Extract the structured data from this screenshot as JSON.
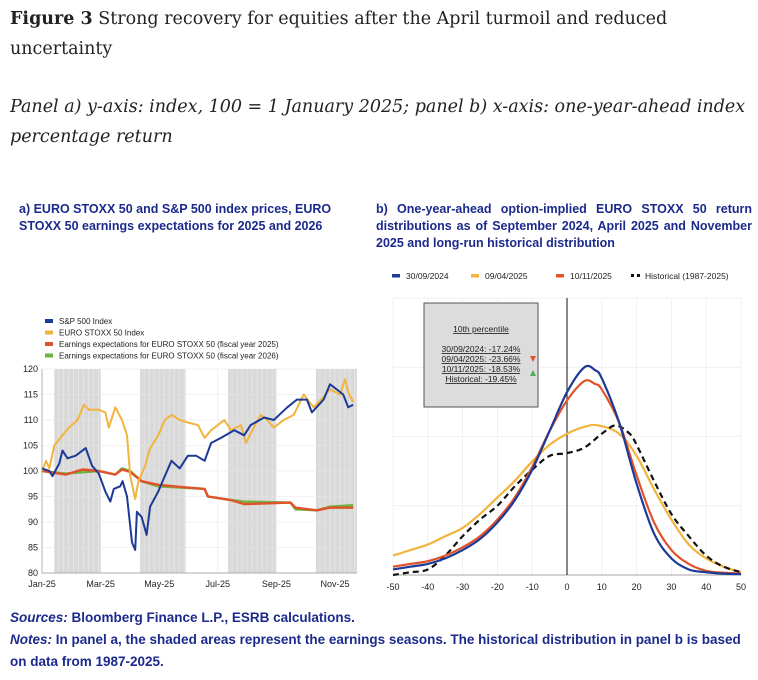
{
  "figure": {
    "label": "Figure 3",
    "title": "Strong recovery for equities after the April turmoil and reduced uncertainty",
    "subtitle": "Panel a) y-axis: index, 100 = 1 January 2025; panel b) x-axis: one-year-ahead index percentage return"
  },
  "footer": {
    "sources_label": "Sources:",
    "sources_text": "Bloomberg Finance L.P., ESRB calculations.",
    "notes_label": "Notes:",
    "notes_text": "In panel a, the shaded areas represent the earnings seasons. The historical distribution in panel b is based on data from 1987-2025."
  },
  "chart_data": [
    {
      "type": "line",
      "title": "a) EURO STOXX 50 and S&P 500 index prices, EURO STOXX 50 earnings expectations for 2025 and 2026",
      "xlabel": "",
      "ylabel": "",
      "x_unit": "months since 1 Jan 2025",
      "xlim": [
        0,
        10.75
      ],
      "ylim": [
        80,
        120
      ],
      "yticks": [
        80,
        85,
        90,
        95,
        100,
        105,
        110,
        115,
        120
      ],
      "xticks": [
        {
          "x": 0,
          "label": "Jan-25"
        },
        {
          "x": 2,
          "label": "Mar-25"
        },
        {
          "x": 4,
          "label": "May-25"
        },
        {
          "x": 6,
          "label": "Jul-25"
        },
        {
          "x": 8,
          "label": "Sep-25"
        },
        {
          "x": 10,
          "label": "Nov-25"
        }
      ],
      "shaded_periods": [
        [
          0.42,
          2.0
        ],
        [
          3.35,
          4.9
        ],
        [
          6.35,
          7.98
        ],
        [
          9.35,
          10.75
        ]
      ],
      "legend_position": "top-left",
      "series": [
        {
          "name": "S&P 500 Index",
          "color": "#1c3a96",
          "points": [
            [
              0,
              100.5
            ],
            [
              0.25,
              100
            ],
            [
              0.36,
              99
            ],
            [
              0.59,
              101.5
            ],
            [
              0.7,
              104
            ],
            [
              0.87,
              102.5
            ],
            [
              1.15,
              103
            ],
            [
              1.49,
              104.5
            ],
            [
              1.71,
              101
            ],
            [
              1.94,
              99.5
            ],
            [
              2.16,
              96
            ],
            [
              2.33,
              94
            ],
            [
              2.45,
              96.5
            ],
            [
              2.67,
              97
            ],
            [
              2.75,
              98
            ],
            [
              2.9,
              95
            ],
            [
              3.07,
              86
            ],
            [
              3.18,
              84.5
            ],
            [
              3.24,
              92
            ],
            [
              3.4,
              91
            ],
            [
              3.57,
              87.5
            ],
            [
              3.69,
              93
            ],
            [
              3.97,
              96
            ],
            [
              4.19,
              99
            ],
            [
              4.42,
              102
            ],
            [
              4.7,
              100.5
            ],
            [
              4.98,
              103
            ],
            [
              5.26,
              103
            ],
            [
              5.55,
              102
            ],
            [
              5.77,
              105.5
            ],
            [
              6.11,
              106.5
            ],
            [
              6.56,
              108
            ],
            [
              6.9,
              107
            ],
            [
              7.12,
              109
            ],
            [
              7.58,
              110.5
            ],
            [
              7.91,
              110
            ],
            [
              8.37,
              112.5
            ],
            [
              8.7,
              114
            ],
            [
              9.04,
              114
            ],
            [
              9.21,
              111.5
            ],
            [
              9.61,
              114
            ],
            [
              9.83,
              117
            ],
            [
              10.06,
              116
            ],
            [
              10.28,
              115
            ],
            [
              10.45,
              112.5
            ],
            [
              10.62,
              113
            ]
          ]
        },
        {
          "name": "EURO STOXX 50 Index",
          "color": "#f2b43c",
          "points": [
            [
              0,
              100
            ],
            [
              0.14,
              102
            ],
            [
              0.25,
              100.5
            ],
            [
              0.42,
              105
            ],
            [
              0.7,
              107
            ],
            [
              0.92,
              108.5
            ],
            [
              1.21,
              110
            ],
            [
              1.43,
              113
            ],
            [
              1.6,
              112
            ],
            [
              1.94,
              112
            ],
            [
              2.16,
              111.5
            ],
            [
              2.28,
              108.5
            ],
            [
              2.5,
              112.5
            ],
            [
              2.73,
              110
            ],
            [
              2.9,
              107
            ],
            [
              3.01,
              99
            ],
            [
              3.18,
              94.5
            ],
            [
              3.29,
              98
            ],
            [
              3.52,
              101
            ],
            [
              3.69,
              104.5
            ],
            [
              3.97,
              107
            ],
            [
              4.19,
              110
            ],
            [
              4.42,
              111
            ],
            [
              4.7,
              110
            ],
            [
              4.98,
              109.5
            ],
            [
              5.32,
              109
            ],
            [
              5.55,
              106.5
            ],
            [
              5.77,
              108
            ],
            [
              6.0,
              109
            ],
            [
              6.22,
              110
            ],
            [
              6.45,
              108
            ],
            [
              6.79,
              109
            ],
            [
              6.96,
              105.5
            ],
            [
              7.18,
              108
            ],
            [
              7.46,
              111
            ],
            [
              7.69,
              110
            ],
            [
              7.91,
              108.5
            ],
            [
              8.25,
              110
            ],
            [
              8.59,
              111
            ],
            [
              8.93,
              115
            ],
            [
              9.27,
              112.5
            ],
            [
              9.61,
              114.5
            ],
            [
              9.83,
              116
            ],
            [
              10.17,
              115
            ],
            [
              10.34,
              118
            ],
            [
              10.45,
              115.5
            ],
            [
              10.62,
              113.5
            ]
          ]
        },
        {
          "name": "Earnings expectations for EURO STOXX 50 (fiscal year 2025)",
          "color": "#e0522b",
          "points": [
            [
              0,
              100
            ],
            [
              0.81,
              99.3
            ],
            [
              1.38,
              100.3
            ],
            [
              1.94,
              100
            ],
            [
              2.5,
              99.3
            ],
            [
              2.73,
              100.3
            ],
            [
              3.01,
              99.8
            ],
            [
              3.4,
              98
            ],
            [
              3.97,
              97.3
            ],
            [
              4.87,
              96.8
            ],
            [
              5.55,
              96.5
            ],
            [
              5.66,
              95
            ],
            [
              6.45,
              94.3
            ],
            [
              6.9,
              93.5
            ],
            [
              8.48,
              93.8
            ],
            [
              8.65,
              92.8
            ],
            [
              9.38,
              92.3
            ],
            [
              9.83,
              92.8
            ],
            [
              10.62,
              92.8
            ]
          ]
        },
        {
          "name": "Earnings expectations for EURO STOXX 50 (fiscal year 2026)",
          "color": "#6db33f",
          "points": [
            [
              0,
              100
            ],
            [
              0.81,
              99.5
            ],
            [
              1.94,
              100
            ],
            [
              2.5,
              99.3
            ],
            [
              2.73,
              100.5
            ],
            [
              3.01,
              100
            ],
            [
              3.4,
              98
            ],
            [
              3.97,
              97
            ],
            [
              4.87,
              96.7
            ],
            [
              5.55,
              96.5
            ],
            [
              5.66,
              95
            ],
            [
              6.45,
              94.3
            ],
            [
              6.9,
              94
            ],
            [
              8.48,
              93.8
            ],
            [
              8.65,
              92.5
            ],
            [
              9.38,
              92.3
            ],
            [
              9.83,
              93
            ],
            [
              10.62,
              93.3
            ]
          ]
        }
      ]
    },
    {
      "type": "line",
      "title": "b) One-year-ahead option-implied EURO STOXX 50 return distributions as of September 2024, April 2025 and November 2025 and long-run historical distribution",
      "xlabel": "",
      "ylabel": "",
      "xlim": [
        -50,
        50
      ],
      "ylim": [
        0,
        1
      ],
      "xticks": [
        -50,
        -40,
        -30,
        -20,
        -10,
        0,
        10,
        20,
        30,
        40,
        50
      ],
      "legend_position": "top",
      "annotation": {
        "heading": "10th percentile",
        "lines": [
          "30/09/2024: -17.24%",
          "09/04/2025: -23.66%",
          "10/11/2025: -18.53%",
          "Historical: -19.45%"
        ],
        "marker_down_color": "#e0522b",
        "marker_up_color": "#4caf50"
      },
      "series": [
        {
          "name": "30/09/2024",
          "color": "#1c3a96",
          "dash": false,
          "points": [
            [
              -50,
              0.02
            ],
            [
              -45,
              0.03
            ],
            [
              -40,
              0.04
            ],
            [
              -35,
              0.06
            ],
            [
              -30,
              0.09
            ],
            [
              -25,
              0.13
            ],
            [
              -20,
              0.19
            ],
            [
              -15,
              0.27
            ],
            [
              -10,
              0.38
            ],
            [
              -5,
              0.52
            ],
            [
              0,
              0.66
            ],
            [
              5,
              0.75
            ],
            [
              8,
              0.74
            ],
            [
              10,
              0.71
            ],
            [
              15,
              0.55
            ],
            [
              20,
              0.33
            ],
            [
              25,
              0.15
            ],
            [
              30,
              0.06
            ],
            [
              35,
              0.02
            ],
            [
              40,
              0.01
            ],
            [
              45,
              0.005
            ],
            [
              50,
              0.003
            ]
          ]
        },
        {
          "name": "09/04/2025",
          "color": "#f2b43c",
          "dash": false,
          "points": [
            [
              -50,
              0.07
            ],
            [
              -45,
              0.09
            ],
            [
              -40,
              0.11
            ],
            [
              -35,
              0.14
            ],
            [
              -30,
              0.17
            ],
            [
              -25,
              0.22
            ],
            [
              -20,
              0.28
            ],
            [
              -15,
              0.34
            ],
            [
              -10,
              0.41
            ],
            [
              -5,
              0.47
            ],
            [
              0,
              0.51
            ],
            [
              5,
              0.535
            ],
            [
              9,
              0.54
            ],
            [
              15,
              0.51
            ],
            [
              20,
              0.43
            ],
            [
              25,
              0.31
            ],
            [
              30,
              0.2
            ],
            [
              35,
              0.11
            ],
            [
              40,
              0.06
            ],
            [
              45,
              0.03
            ],
            [
              50,
              0.01
            ]
          ]
        },
        {
          "name": "10/11/2025",
          "color": "#e0522b",
          "dash": false,
          "points": [
            [
              -50,
              0.03
            ],
            [
              -45,
              0.04
            ],
            [
              -40,
              0.05
            ],
            [
              -35,
              0.07
            ],
            [
              -30,
              0.1
            ],
            [
              -25,
              0.14
            ],
            [
              -20,
              0.2
            ],
            [
              -15,
              0.28
            ],
            [
              -10,
              0.39
            ],
            [
              -5,
              0.52
            ],
            [
              0,
              0.63
            ],
            [
              5,
              0.7
            ],
            [
              8,
              0.69
            ],
            [
              10,
              0.67
            ],
            [
              15,
              0.55
            ],
            [
              20,
              0.36
            ],
            [
              25,
              0.19
            ],
            [
              30,
              0.09
            ],
            [
              35,
              0.04
            ],
            [
              40,
              0.015
            ],
            [
              45,
              0.008
            ],
            [
              50,
              0.005
            ]
          ]
        },
        {
          "name": "Historical (1987-2025)",
          "color": "#111111",
          "dash": true,
          "points": [
            [
              -50,
              0.0
            ],
            [
              -45,
              0.01
            ],
            [
              -40,
              0.02
            ],
            [
              -35,
              0.07
            ],
            [
              -30,
              0.14
            ],
            [
              -25,
              0.2
            ],
            [
              -20,
              0.25
            ],
            [
              -15,
              0.32
            ],
            [
              -10,
              0.38
            ],
            [
              -5,
              0.43
            ],
            [
              0,
              0.44
            ],
            [
              5,
              0.46
            ],
            [
              10,
              0.51
            ],
            [
              14,
              0.54
            ],
            [
              18,
              0.51
            ],
            [
              20,
              0.47
            ],
            [
              25,
              0.34
            ],
            [
              30,
              0.22
            ],
            [
              35,
              0.14
            ],
            [
              40,
              0.07
            ],
            [
              45,
              0.03
            ],
            [
              50,
              0.01
            ]
          ]
        }
      ]
    }
  ]
}
